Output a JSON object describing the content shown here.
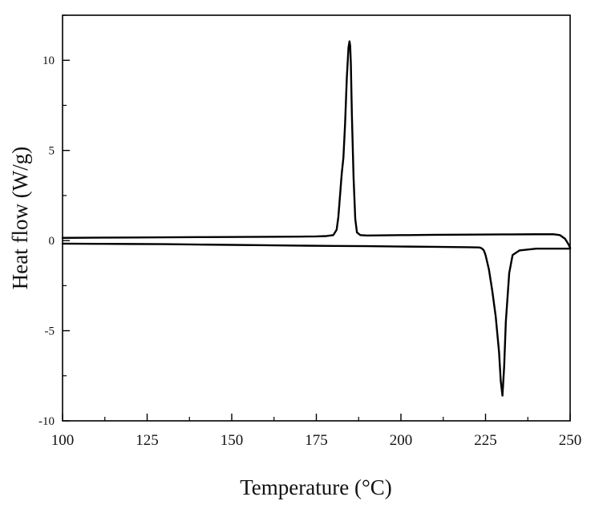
{
  "chart_data": {
    "type": "line",
    "title": "",
    "xlabel": "Temperature (°C)",
    "ylabel": "Heat flow (W/g)",
    "xlim": [
      100,
      250
    ],
    "ylim": [
      -10,
      12.5
    ],
    "x_ticks": [
      100,
      125,
      150,
      175,
      200,
      225,
      250
    ],
    "y_ticks": [
      -10,
      -5,
      0,
      5,
      10
    ],
    "grid": false,
    "legend": "none",
    "line_color": "#000000",
    "series": [
      {
        "x": [
          100,
          120,
          140,
          160,
          170,
          175,
          178,
          180,
          181,
          181.5,
          182,
          182.5,
          183,
          183.5,
          184,
          184.5,
          184.8,
          185,
          185.2,
          185.5,
          186,
          186.5,
          187,
          188,
          190,
          200,
          210,
          220,
          230,
          240,
          245,
          247,
          248.5,
          249.5,
          250
        ],
        "y": [
          0.15,
          0.17,
          0.19,
          0.21,
          0.22,
          0.23,
          0.25,
          0.3,
          0.6,
          1.3,
          2.5,
          3.7,
          4.6,
          6.5,
          9.0,
          10.7,
          11.05,
          10.8,
          9.8,
          7.0,
          3.5,
          1.2,
          0.45,
          0.3,
          0.28,
          0.3,
          0.32,
          0.33,
          0.34,
          0.35,
          0.35,
          0.3,
          0.1,
          -0.2,
          -0.4
        ]
      },
      {
        "x": [
          250,
          248,
          240,
          235,
          233,
          232,
          231,
          230.5,
          230,
          229.5,
          229,
          228,
          227,
          226,
          225,
          224.5,
          224,
          223.5,
          223,
          220,
          210,
          200,
          190,
          180,
          170,
          160,
          150,
          140,
          130,
          120,
          110,
          100
        ],
        "y": [
          -0.45,
          -0.45,
          -0.45,
          -0.55,
          -0.8,
          -1.8,
          -4.5,
          -7.0,
          -8.6,
          -7.8,
          -6.2,
          -4.2,
          -2.8,
          -1.6,
          -0.8,
          -0.55,
          -0.45,
          -0.4,
          -0.38,
          -0.37,
          -0.35,
          -0.33,
          -0.31,
          -0.3,
          -0.28,
          -0.26,
          -0.24,
          -0.22,
          -0.2,
          -0.19,
          -0.18,
          -0.17
        ]
      }
    ]
  }
}
